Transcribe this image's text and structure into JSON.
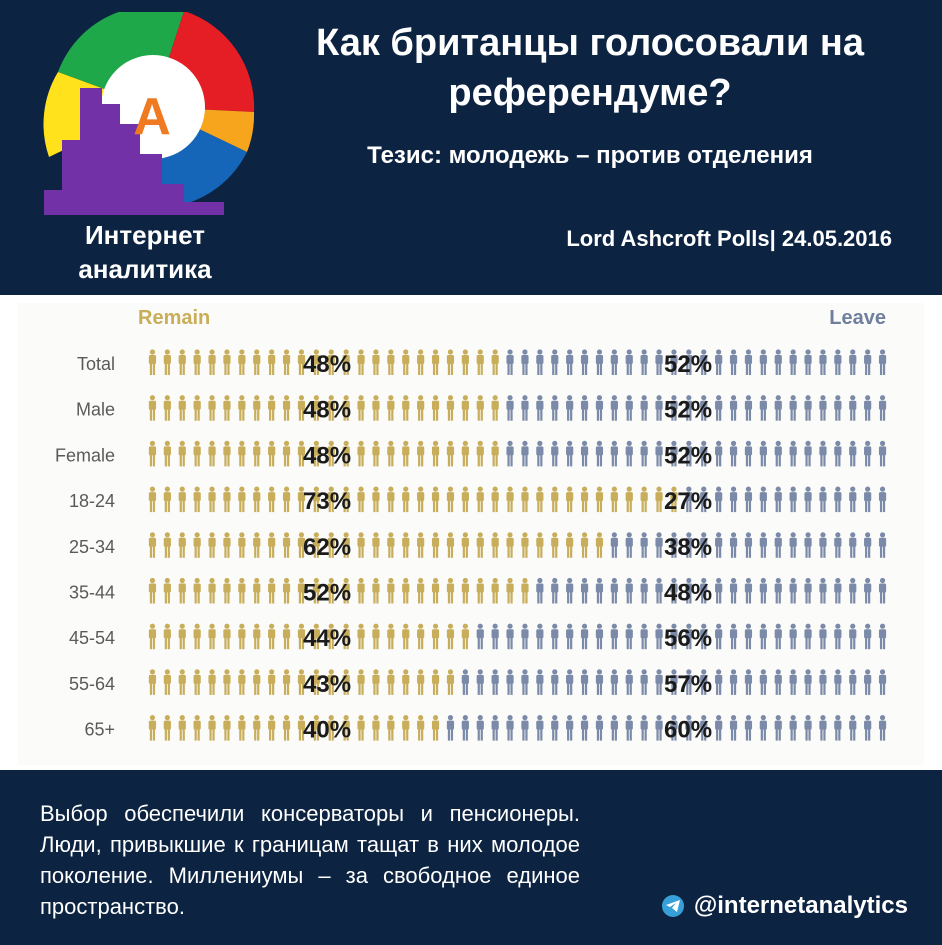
{
  "header": {
    "title": "Как британцы голосовали на референдуме?",
    "thesis": "Тезис: молодежь – против отделения",
    "source": "Lord Ashcroft Polls| 24.05.2016",
    "brand": "Интернет аналитика",
    "logo_letter": "A",
    "logo_colors": {
      "green": "#1fa84a",
      "red": "#e51d25",
      "yellow": "#ffe21c",
      "orange": "#f7a51c",
      "blue": "#1566b8",
      "bars": "#7231a7",
      "letter": "#f07a22"
    }
  },
  "legend": {
    "remain": "Remain",
    "leave": "Leave"
  },
  "colors": {
    "remain": "#c8ad5b",
    "leave": "#7b8aa8",
    "row_label": "#5a5a5a",
    "value": "#1b1b1b"
  },
  "chart_data": {
    "type": "bar",
    "title": "",
    "categories": [
      "Total",
      "Male",
      "Female",
      "18-24",
      "25-34",
      "35-44",
      "45-54",
      "55-64",
      "65+"
    ],
    "series": [
      {
        "name": "Remain",
        "values": [
          48,
          48,
          48,
          73,
          62,
          52,
          44,
          43,
          40
        ]
      },
      {
        "name": "Leave",
        "values": [
          52,
          52,
          52,
          27,
          38,
          48,
          56,
          57,
          60
        ]
      }
    ],
    "value_labels": {
      "remain": [
        "48%",
        "48%",
        "48%",
        "73%",
        "62%",
        "52%",
        "44%",
        "43%",
        "40%"
      ],
      "leave": [
        "52%",
        "52%",
        "52%",
        "27%",
        "38%",
        "48%",
        "56%",
        "57%",
        "60%"
      ]
    },
    "ylim": [
      0,
      100
    ],
    "stacked": true,
    "figures_per_row": 50
  },
  "footer": {
    "note": "Выбор обеспечили консерваторы и пенсионеры. Люди, привыкшие к границам тащат в них молодое поколение. Миллениумы – за свободное единое пространство.",
    "handle": "@internetanalytics",
    "handle_icon": "telegram-icon"
  }
}
